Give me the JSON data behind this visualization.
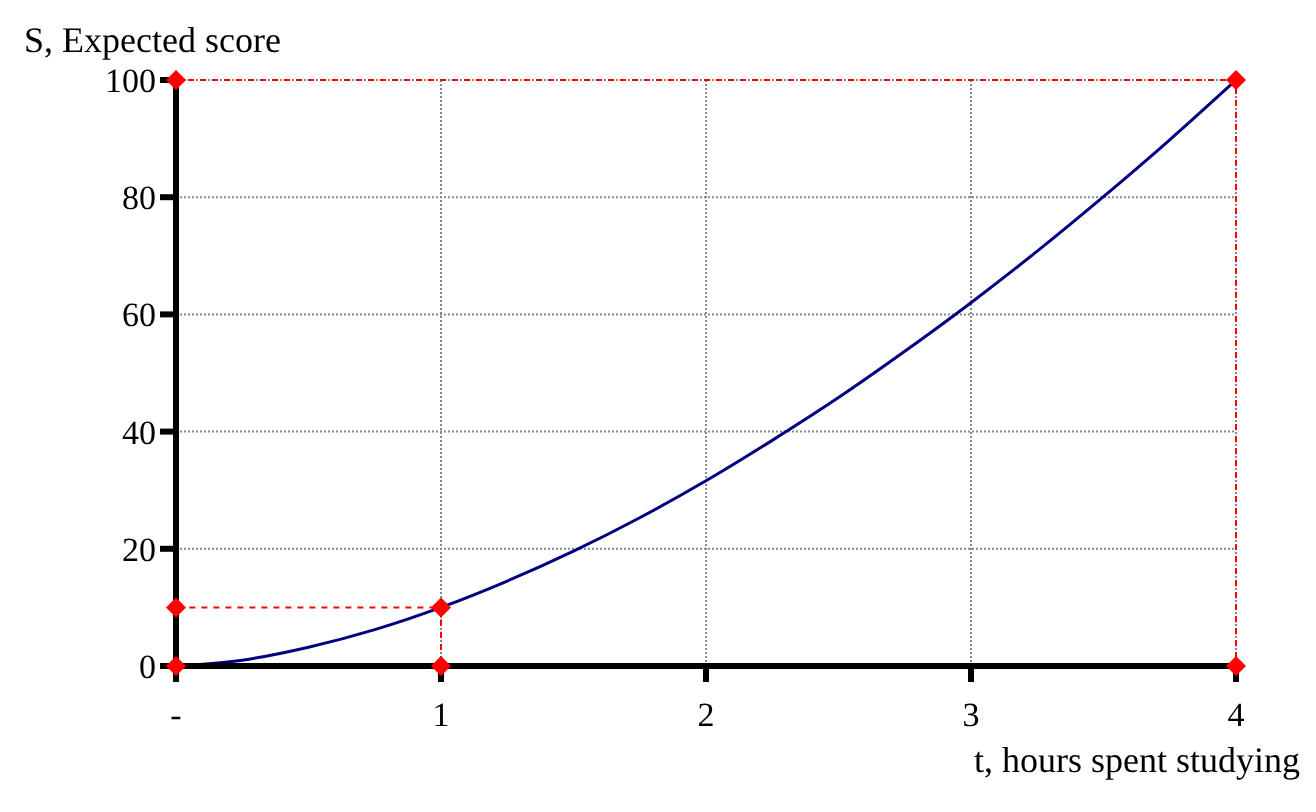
{
  "chart_data": {
    "type": "line",
    "xlabel": "t, hours spent studying",
    "ylabel": "S, Expected score",
    "xlim": [
      0,
      4
    ],
    "ylim": [
      0,
      100
    ],
    "xticks": [
      {
        "value": 0,
        "label": "-"
      },
      1,
      2,
      3,
      4
    ],
    "yticks": [
      0,
      20,
      40,
      60,
      80,
      100
    ],
    "grid": true,
    "series": [
      {
        "color": "#000080",
        "marker": "none",
        "line_style": "solid",
        "x": [
          0,
          0.25,
          0.5,
          0.75,
          1,
          1.25,
          1.5,
          1.75,
          2,
          2.25,
          2.5,
          2.75,
          3,
          3.25,
          3.5,
          3.75,
          4
        ],
        "values": [
          0,
          1,
          3.2,
          6.2,
          10,
          14.5,
          19.6,
          25.3,
          31.6,
          38.5,
          45.8,
          53.7,
          62,
          70.8,
          80.1,
          89.8,
          100
        ]
      },
      {
        "color": "#ff0000",
        "marker": "diamond",
        "line_style": "dashed",
        "x": [
          0,
          0,
          1,
          1
        ],
        "values": [
          0,
          10,
          10,
          0
        ]
      },
      {
        "color": "#ff0000",
        "marker": "diamond",
        "line_style": "dashed",
        "x": [
          0,
          4,
          4
        ],
        "values": [
          100,
          100,
          0
        ]
      }
    ]
  }
}
